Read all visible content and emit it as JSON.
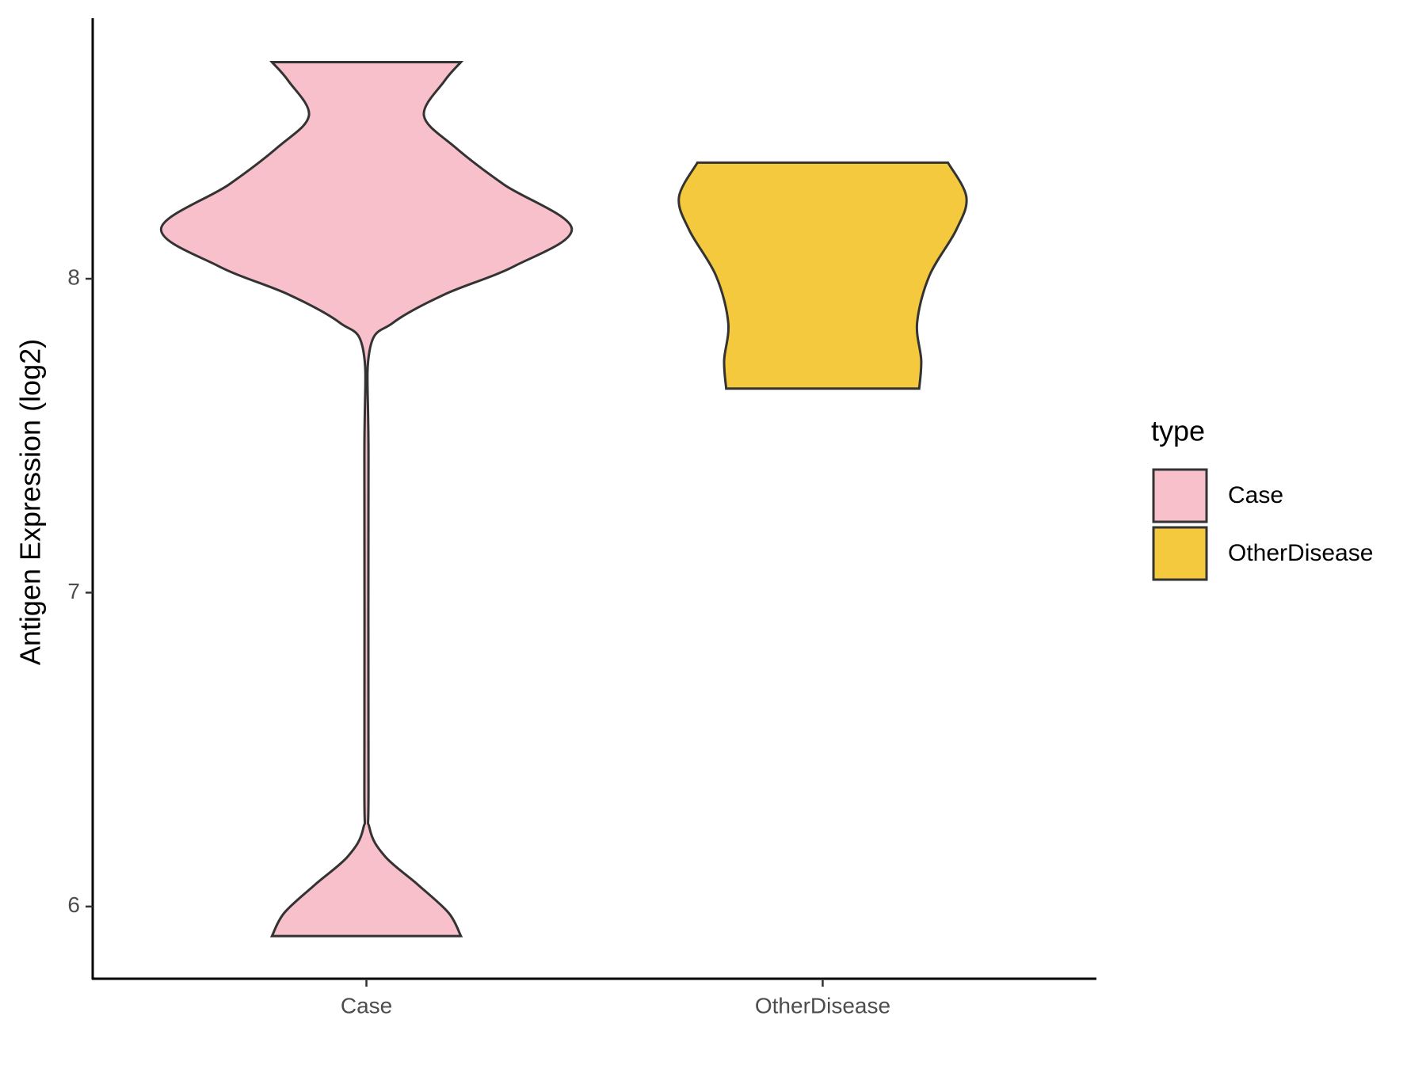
{
  "chart_data": {
    "type": "violin",
    "y_label": "Antigen Expression (log2)",
    "categories": [
      "Case",
      "OtherDisease"
    ],
    "ylim": [
      5.77,
      8.83
    ],
    "yticks": [
      6,
      7,
      8
    ],
    "legend_title": "type",
    "legend_position": "right",
    "series": [
      {
        "name": "Case",
        "color": "#F8C0CB",
        "y": [
          8.69,
          8.63,
          8.52,
          8.42,
          8.3,
          8.16,
          8.04,
          7.95,
          7.86,
          7.77,
          7.42,
          6.4,
          6.25,
          6.16,
          6.07,
          5.98,
          5.906
        ],
        "density": [
          0.46,
          0.38,
          0.28,
          0.43,
          0.67,
          1.0,
          0.72,
          0.38,
          0.13,
          0.015,
          0.01,
          0.01,
          0.015,
          0.09,
          0.25,
          0.4,
          0.46
        ]
      },
      {
        "name": "OtherDisease",
        "color": "#F5C93E",
        "y": [
          8.37,
          8.26,
          8.155,
          8.01,
          7.86,
          7.74,
          7.65
        ],
        "density": [
          0.61,
          0.7,
          0.65,
          0.52,
          0.46,
          0.48,
          0.47
        ]
      }
    ]
  }
}
